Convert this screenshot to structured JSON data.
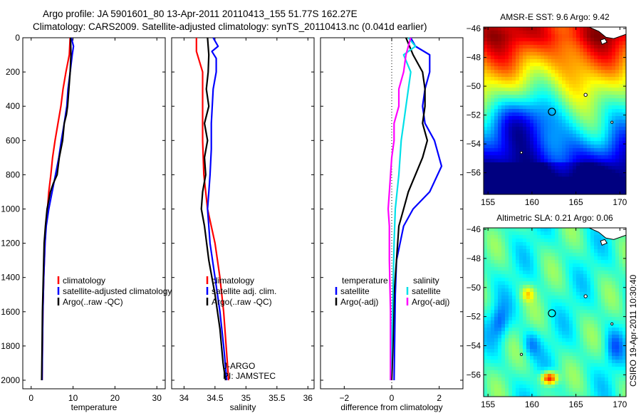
{
  "header": {
    "line1": "Argo profile: JA 5901601_80 13-Apr-2011 20110413_155 51.77S 162.27E",
    "line2": "Climatology: CARS2009. Satellite-adjusted climatology: synTS_20110413.nc (0.041d earlier)"
  },
  "footer": {
    "credit": "CSIRO 19-Apr-2011 10:30:40"
  },
  "colors": {
    "climatology": "#ff0000",
    "satellite": "#0000ff",
    "argo": "#000000",
    "sal_satellite": "#00e0e8",
    "sal_argo": "#ff00ff"
  },
  "chart_data": [
    {
      "id": "temperature",
      "type": "line",
      "xlabel": "temperature",
      "ylim": [
        0,
        2050
      ],
      "y_reversed": true,
      "xlim": [
        -2,
        32
      ],
      "xticks": [
        0,
        10,
        20,
        30
      ],
      "yticks": [
        0,
        200,
        400,
        600,
        800,
        1000,
        1200,
        1400,
        1600,
        1800,
        2000
      ],
      "legend": {
        "placement": "bottom-right",
        "entries": [
          {
            "label": "climatology",
            "series": "climatology"
          },
          {
            "label": "satellite-adjusted climatology",
            "series": "satellite"
          },
          {
            "label": "Argo(..raw -QC)",
            "series": "argo"
          }
        ]
      },
      "series": [
        {
          "key": "climatology",
          "points": [
            [
              9.3,
              0
            ],
            [
              9.1,
              100
            ],
            [
              8.3,
              200
            ],
            [
              7.6,
              300
            ],
            [
              7.1,
              400
            ],
            [
              6.4,
              500
            ],
            [
              5.7,
              600
            ],
            [
              5.1,
              700
            ],
            [
              4.7,
              800
            ],
            [
              4.2,
              900
            ],
            [
              3.9,
              1000
            ],
            [
              3.5,
              1100
            ],
            [
              3.3,
              1200
            ],
            [
              3.0,
              1400
            ],
            [
              2.8,
              1600
            ],
            [
              2.7,
              1800
            ],
            [
              2.6,
              2000
            ]
          ]
        },
        {
          "key": "satellite",
          "points": [
            [
              9.6,
              0
            ],
            [
              10.1,
              50
            ],
            [
              9.8,
              100
            ],
            [
              9.3,
              200
            ],
            [
              8.8,
              300
            ],
            [
              8.5,
              400
            ],
            [
              7.9,
              500
            ],
            [
              7.2,
              600
            ],
            [
              6.6,
              700
            ],
            [
              5.8,
              800
            ],
            [
              5.0,
              900
            ],
            [
              4.2,
              1000
            ],
            [
              3.6,
              1100
            ],
            [
              3.3,
              1200
            ],
            [
              3.0,
              1400
            ],
            [
              2.8,
              1600
            ],
            [
              2.7,
              1800
            ],
            [
              2.6,
              2000
            ]
          ]
        },
        {
          "key": "argo",
          "points": [
            [
              9.4,
              0
            ],
            [
              9.5,
              100
            ],
            [
              9.3,
              200
            ],
            [
              9.0,
              300
            ],
            [
              8.7,
              400
            ],
            [
              8.4,
              450
            ],
            [
              7.9,
              500
            ],
            [
              7.5,
              600
            ],
            [
              6.7,
              700
            ],
            [
              6.2,
              800
            ],
            [
              5.3,
              850
            ],
            [
              4.6,
              900
            ],
            [
              4.2,
              950
            ],
            [
              3.8,
              1000
            ],
            [
              3.4,
              1100
            ],
            [
              3.1,
              1200
            ],
            [
              2.9,
              1400
            ],
            [
              2.7,
              1600
            ],
            [
              2.6,
              1800
            ],
            [
              2.5,
              2000
            ]
          ]
        }
      ]
    },
    {
      "id": "salinity",
      "type": "line",
      "xlabel": "salinity",
      "ylim": [
        0,
        2050
      ],
      "y_reversed": true,
      "xlim": [
        33.8,
        36.1
      ],
      "xticks": [
        34,
        34.5,
        35,
        35.5,
        36
      ],
      "yticks": [
        0,
        200,
        400,
        600,
        800,
        1000,
        1200,
        1400,
        1600,
        1800,
        2000
      ],
      "legend": {
        "placement": "bottom-right",
        "entries": [
          {
            "label": "climatology",
            "series": "climatology"
          },
          {
            "label": "satellite adj. clim.",
            "series": "satellite"
          },
          {
            "label": "Argo(..raw -QC)",
            "series": "argo"
          }
        ]
      },
      "annotations": [
        "J-ARGO",
        "PI: JAMSTEC"
      ],
      "series": [
        {
          "key": "climatology",
          "points": [
            [
              34.2,
              0
            ],
            [
              34.2,
              80
            ],
            [
              34.3,
              200
            ],
            [
              34.3,
              400
            ],
            [
              34.3,
              600
            ],
            [
              34.32,
              800
            ],
            [
              34.38,
              1000
            ],
            [
              34.5,
              1200
            ],
            [
              34.58,
              1400
            ],
            [
              34.64,
              1600
            ],
            [
              34.68,
              1800
            ],
            [
              34.72,
              2000
            ]
          ]
        },
        {
          "key": "satellite",
          "points": [
            [
              34.47,
              0
            ],
            [
              34.55,
              50
            ],
            [
              34.45,
              80
            ],
            [
              34.52,
              120
            ],
            [
              34.52,
              200
            ],
            [
              34.47,
              300
            ],
            [
              34.44,
              500
            ],
            [
              34.44,
              650
            ],
            [
              34.42,
              800
            ],
            [
              34.4,
              900
            ],
            [
              34.38,
              1000
            ],
            [
              34.42,
              1200
            ],
            [
              34.5,
              1400
            ],
            [
              34.58,
              1600
            ],
            [
              34.64,
              1800
            ],
            [
              34.69,
              2000
            ]
          ]
        },
        {
          "key": "argo",
          "points": [
            [
              34.38,
              0
            ],
            [
              34.4,
              100
            ],
            [
              34.39,
              200
            ],
            [
              34.36,
              300
            ],
            [
              34.4,
              400
            ],
            [
              34.33,
              500
            ],
            [
              34.38,
              600
            ],
            [
              34.33,
              700
            ],
            [
              34.35,
              800
            ],
            [
              34.3,
              900
            ],
            [
              34.28,
              1000
            ],
            [
              34.33,
              1100
            ],
            [
              34.4,
              1300
            ],
            [
              34.5,
              1500
            ],
            [
              34.58,
              1700
            ],
            [
              34.63,
              1900
            ],
            [
              34.67,
              2000
            ]
          ]
        }
      ]
    },
    {
      "id": "difference",
      "type": "line",
      "xlabel": "difference from climatology",
      "ylim": [
        0,
        2050
      ],
      "y_reversed": true,
      "xlim": [
        -3,
        3
      ],
      "xticks": [
        -2,
        0,
        2
      ],
      "yticks": [
        0,
        200,
        400,
        600,
        800,
        1000,
        1200,
        1400,
        1600,
        1800,
        2000
      ],
      "zero_line": "dotted",
      "legend": {
        "placement": "bottom",
        "groups": [
          {
            "title": "temperature",
            "entries": [
              {
                "label": "satellite",
                "series": "temp_satellite"
              },
              {
                "label": "Argo(-adj)",
                "series": "temp_argo"
              }
            ]
          },
          {
            "title": "salinity",
            "entries": [
              {
                "label": "satellite",
                "series": "sal_satellite"
              },
              {
                "label": "Argo(-adj)",
                "series": "sal_argo"
              }
            ]
          }
        ]
      },
      "series": [
        {
          "key": "temp_satellite",
          "color_key": "satellite",
          "points": [
            [
              0.8,
              0
            ],
            [
              1.0,
              50
            ],
            [
              1.6,
              100
            ],
            [
              1.6,
              200
            ],
            [
              1.4,
              300
            ],
            [
              1.3,
              400
            ],
            [
              1.4,
              500
            ],
            [
              1.8,
              600
            ],
            [
              2.1,
              750
            ],
            [
              1.6,
              900
            ],
            [
              0.9,
              1000
            ],
            [
              0.5,
              1100
            ],
            [
              0.2,
              1300
            ],
            [
              0.15,
              1500
            ],
            [
              0.12,
              1800
            ],
            [
              0.1,
              2000
            ]
          ]
        },
        {
          "key": "temp_argo",
          "color_key": "argo",
          "points": [
            [
              0.6,
              0
            ],
            [
              0.9,
              100
            ],
            [
              1.3,
              200
            ],
            [
              1.4,
              300
            ],
            [
              1.4,
              400
            ],
            [
              1.3,
              500
            ],
            [
              1.5,
              600
            ],
            [
              1.3,
              700
            ],
            [
              1.0,
              800
            ],
            [
              0.7,
              900
            ],
            [
              0.5,
              1000
            ],
            [
              0.3,
              1100
            ],
            [
              0.2,
              1300
            ],
            [
              0.1,
              1500
            ],
            [
              0.05,
              1800
            ],
            [
              0.0,
              2000
            ]
          ]
        },
        {
          "key": "sal_satellite",
          "color_key": "sal_satellite",
          "points": [
            [
              0.7,
              0
            ],
            [
              1.0,
              50
            ],
            [
              0.5,
              100
            ],
            [
              0.8,
              200
            ],
            [
              0.6,
              400
            ],
            [
              0.5,
              500
            ],
            [
              0.4,
              600
            ],
            [
              0.3,
              800
            ],
            [
              0.15,
              1000
            ],
            [
              0.1,
              1200
            ],
            [
              0.05,
              1500
            ],
            [
              0.0,
              1800
            ],
            [
              -0.05,
              2000
            ]
          ]
        },
        {
          "key": "sal_argo",
          "color_key": "sal_argo",
          "points": [
            [
              0.8,
              0
            ],
            [
              0.6,
              100
            ],
            [
              0.5,
              200
            ],
            [
              0.3,
              300
            ],
            [
              0.3,
              400
            ],
            [
              0.1,
              500
            ],
            [
              0.1,
              600
            ],
            [
              0.0,
              700
            ],
            [
              -0.1,
              900
            ],
            [
              -0.15,
              1000
            ],
            [
              -0.1,
              1100
            ],
            [
              -0.1,
              1300
            ],
            [
              -0.05,
              1600
            ],
            [
              -0.05,
              2000
            ]
          ]
        }
      ]
    },
    {
      "id": "sst_map",
      "type": "heatmap",
      "title": "AMSR-E SST: 9.6 Argo: 9.42",
      "xlim": [
        154.5,
        170.7
      ],
      "ylim": [
        -57.5,
        -45.9
      ],
      "xticks": [
        155,
        160,
        165,
        170
      ],
      "yticks": [
        -46,
        -48,
        -50,
        -52,
        -54,
        -56
      ],
      "marker": [
        162.27,
        -51.77
      ]
    },
    {
      "id": "sla_map",
      "type": "heatmap",
      "title": "Altimetric SLA: 0.21 Argo: 0.06",
      "xlim": [
        154.5,
        170.7
      ],
      "ylim": [
        -57.5,
        -45.9
      ],
      "xticks": [
        155,
        160,
        165,
        170
      ],
      "yticks": [
        -46,
        -48,
        -50,
        -52,
        -54,
        -56
      ],
      "marker": [
        162.27,
        -51.77
      ]
    }
  ]
}
